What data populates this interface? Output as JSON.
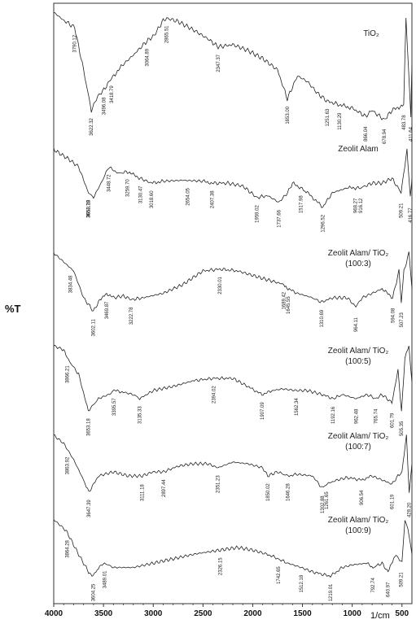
{
  "chart_data": {
    "type": "line",
    "ylabel": "%T",
    "xlabel": "1/cm",
    "xlim": [
      4000,
      400
    ],
    "x_reversed": true,
    "x_ticks": [
      4000,
      3500,
      3000,
      2500,
      2000,
      1500,
      1000,
      500
    ],
    "grid": "none",
    "series": [
      {
        "name": "TiO2",
        "name_lines": [
          "TiO₂"
        ],
        "trace": [
          [
            4000,
            0.05
          ],
          [
            3900,
            0.12
          ],
          [
            3790,
            0.18
          ],
          [
            3700,
            0.55
          ],
          [
            3622,
            0.9
          ],
          [
            3560,
            0.78
          ],
          [
            3496,
            0.72
          ],
          [
            3418,
            0.62
          ],
          [
            3300,
            0.5
          ],
          [
            3200,
            0.42
          ],
          [
            3064,
            0.3
          ],
          [
            2990,
            0.25
          ],
          [
            2900,
            0.12
          ],
          [
            2865,
            0.1
          ],
          [
            2750,
            0.13
          ],
          [
            2600,
            0.2
          ],
          [
            2450,
            0.28
          ],
          [
            2347,
            0.35
          ],
          [
            2200,
            0.33
          ],
          [
            2050,
            0.38
          ],
          [
            1900,
            0.45
          ],
          [
            1750,
            0.55
          ],
          [
            1653,
            0.8
          ],
          [
            1550,
            0.6
          ],
          [
            1450,
            0.65
          ],
          [
            1350,
            0.75
          ],
          [
            1251,
            0.82
          ],
          [
            1130,
            0.85
          ],
          [
            1000,
            0.88
          ],
          [
            866,
            0.95
          ],
          [
            800,
            0.9
          ],
          [
            678,
            0.98
          ],
          [
            600,
            0.9
          ],
          [
            483,
            0.85
          ],
          [
            460,
            0.1
          ],
          [
            411,
            0.95
          ],
          [
            400,
            0.5
          ]
        ],
        "peaks": [
          {
            "x": 3790,
            "label": "3790.12"
          },
          {
            "x": 3622,
            "label": "3622.32"
          },
          {
            "x": 3496,
            "label": "3496.08"
          },
          {
            "x": 3418,
            "label": "3418.79"
          },
          {
            "x": 3064,
            "label": "3064.89"
          },
          {
            "x": 2865,
            "label": "2865.51"
          },
          {
            "x": 2347,
            "label": "2347.37"
          },
          {
            "x": 1653,
            "label": "1653.00"
          },
          {
            "x": 1251,
            "label": "1251.63"
          },
          {
            "x": 1130,
            "label": "1130.29"
          },
          {
            "x": 866,
            "label": "866.04"
          },
          {
            "x": 678,
            "label": "678.94"
          },
          {
            "x": 483,
            "label": "483.78"
          },
          {
            "x": 411,
            "label": "411.64"
          }
        ]
      },
      {
        "name": "Zeolit Alam",
        "name_lines": [
          "Zeolit Alam"
        ],
        "trace": [
          [
            4000,
            0.1
          ],
          [
            3850,
            0.2
          ],
          [
            3750,
            0.28
          ],
          [
            3651,
            0.55
          ],
          [
            3600,
            0.6
          ],
          [
            3500,
            0.4
          ],
          [
            3448,
            0.28
          ],
          [
            3350,
            0.35
          ],
          [
            3259,
            0.33
          ],
          [
            3130,
            0.4
          ],
          [
            3018,
            0.45
          ],
          [
            2900,
            0.43
          ],
          [
            2700,
            0.42
          ],
          [
            2500,
            0.43
          ],
          [
            2407,
            0.45
          ],
          [
            2250,
            0.45
          ],
          [
            2100,
            0.48
          ],
          [
            1959,
            0.6
          ],
          [
            1850,
            0.58
          ],
          [
            1737,
            0.65
          ],
          [
            1650,
            0.55
          ],
          [
            1600,
            0.45
          ],
          [
            1517,
            0.5
          ],
          [
            1450,
            0.55
          ],
          [
            1296,
            0.7
          ],
          [
            1200,
            0.55
          ],
          [
            1050,
            0.5
          ],
          [
            968,
            0.5
          ],
          [
            916,
            0.5
          ],
          [
            800,
            0.45
          ],
          [
            700,
            0.45
          ],
          [
            600,
            0.4
          ],
          [
            509,
            0.55
          ],
          [
            450,
            0.1
          ],
          [
            416,
            0.6
          ],
          [
            400,
            0.4
          ]
        ],
        "peaks": [
          {
            "x": 3651,
            "label": "3651.70"
          },
          {
            "x": 3653,
            "label": "3653.18"
          },
          {
            "x": 3448,
            "label": "3448.72"
          },
          {
            "x": 3259,
            "label": "3259.70"
          },
          {
            "x": 3130,
            "label": "3130.47"
          },
          {
            "x": 3018,
            "label": "3018.60"
          },
          {
            "x": 2654,
            "label": "2654.05"
          },
          {
            "x": 2407,
            "label": "2407.38"
          },
          {
            "x": 1959,
            "label": "1959.02"
          },
          {
            "x": 1737,
            "label": "1737.66"
          },
          {
            "x": 1517,
            "label": "1517.98"
          },
          {
            "x": 1296,
            "label": "1296.52"
          },
          {
            "x": 968,
            "label": "968.27"
          },
          {
            "x": 916,
            "label": "916.12"
          },
          {
            "x": 509,
            "label": "509.21"
          },
          {
            "x": 416,
            "label": "416.77"
          }
        ]
      },
      {
        "name": "Zeolit Alam/ TiO2 (100:3)",
        "name_lines": [
          "Zeolit Alam/ TiO₂",
          "(100:3)"
        ],
        "trace": [
          [
            4000,
            0.1
          ],
          [
            3900,
            0.2
          ],
          [
            3800,
            0.3
          ],
          [
            3700,
            0.6
          ],
          [
            3602,
            0.75
          ],
          [
            3550,
            0.65
          ],
          [
            3480,
            0.55
          ],
          [
            3400,
            0.6
          ],
          [
            3300,
            0.58
          ],
          [
            3222,
            0.62
          ],
          [
            3100,
            0.6
          ],
          [
            2900,
            0.55
          ],
          [
            2700,
            0.45
          ],
          [
            2500,
            0.3
          ],
          [
            2330,
            0.28
          ],
          [
            2150,
            0.3
          ],
          [
            2000,
            0.35
          ],
          [
            1850,
            0.4
          ],
          [
            1689,
            0.45
          ],
          [
            1645,
            0.5
          ],
          [
            1550,
            0.55
          ],
          [
            1400,
            0.6
          ],
          [
            1310,
            0.65
          ],
          [
            1200,
            0.6
          ],
          [
            1050,
            0.6
          ],
          [
            964,
            0.7
          ],
          [
            900,
            0.6
          ],
          [
            800,
            0.55
          ],
          [
            700,
            0.5
          ],
          [
            594,
            0.6
          ],
          [
            530,
            0.3
          ],
          [
            507,
            0.65
          ],
          [
            480,
            0.3
          ],
          [
            430,
            0.1
          ],
          [
            400,
            0.5
          ]
        ],
        "peaks": [
          {
            "x": 3834,
            "label": "3834.48"
          },
          {
            "x": 3602,
            "label": "3602.11"
          },
          {
            "x": 3469,
            "label": "3469.87"
          },
          {
            "x": 3222,
            "label": "3222.78"
          },
          {
            "x": 2330,
            "label": "2330.01"
          },
          {
            "x": 1689,
            "label": "1689.42"
          },
          {
            "x": 1645,
            "label": "1645.55"
          },
          {
            "x": 1310,
            "label": "1310.69"
          },
          {
            "x": 964,
            "label": "964.11"
          },
          {
            "x": 594,
            "label": "594.08"
          },
          {
            "x": 507,
            "label": "507.23"
          }
        ]
      },
      {
        "name": "Zeolit Alam/ TiO2 (100:5)",
        "name_lines": [
          "Zeolit Alam/ TiO₂",
          "(100:5)"
        ],
        "trace": [
          [
            4000,
            0.05
          ],
          [
            3900,
            0.1
          ],
          [
            3866,
            0.2
          ],
          [
            3750,
            0.4
          ],
          [
            3653,
            0.85
          ],
          [
            3550,
            0.7
          ],
          [
            3450,
            0.65
          ],
          [
            3395,
            0.6
          ],
          [
            3300,
            0.62
          ],
          [
            3200,
            0.65
          ],
          [
            3135,
            0.7
          ],
          [
            3000,
            0.6
          ],
          [
            2800,
            0.55
          ],
          [
            2600,
            0.48
          ],
          [
            2394,
            0.45
          ],
          [
            2200,
            0.45
          ],
          [
            2050,
            0.55
          ],
          [
            1907,
            0.65
          ],
          [
            1800,
            0.6
          ],
          [
            1700,
            0.58
          ],
          [
            1562,
            0.6
          ],
          [
            1450,
            0.6
          ],
          [
            1300,
            0.65
          ],
          [
            1192,
            0.7
          ],
          [
            1100,
            0.65
          ],
          [
            962,
            0.7
          ],
          [
            850,
            0.65
          ],
          [
            765,
            0.7
          ],
          [
            700,
            0.65
          ],
          [
            601,
            0.75
          ],
          [
            540,
            0.35
          ],
          [
            505,
            0.85
          ],
          [
            470,
            0.2
          ],
          [
            430,
            0.05
          ],
          [
            400,
            0.5
          ]
        ],
        "peaks": [
          {
            "x": 3866,
            "label": "3866.21"
          },
          {
            "x": 3653,
            "label": "3653.18"
          },
          {
            "x": 3395,
            "label": "3395.57"
          },
          {
            "x": 3135,
            "label": "3135.33"
          },
          {
            "x": 2394,
            "label": "2394.02"
          },
          {
            "x": 1907,
            "label": "1907.09"
          },
          {
            "x": 1562,
            "label": "1562.34"
          },
          {
            "x": 1192,
            "label": "1192.16"
          },
          {
            "x": 962,
            "label": "962.48"
          },
          {
            "x": 765,
            "label": "765.74"
          },
          {
            "x": 601,
            "label": "601.79"
          },
          {
            "x": 505,
            "label": "505.35"
          }
        ]
      },
      {
        "name": "Zeolit Alam/ TiO2 (100:7)",
        "name_lines": [
          "Zeolit Alam/ TiO₂",
          "(100:7)"
        ],
        "trace": [
          [
            4000,
            0.1
          ],
          [
            3900,
            0.2
          ],
          [
            3800,
            0.4
          ],
          [
            3700,
            0.65
          ],
          [
            3647,
            0.8
          ],
          [
            3550,
            0.6
          ],
          [
            3400,
            0.55
          ],
          [
            3250,
            0.6
          ],
          [
            3111,
            0.6
          ],
          [
            3000,
            0.55
          ],
          [
            2897,
            0.55
          ],
          [
            2750,
            0.48
          ],
          [
            2600,
            0.45
          ],
          [
            2450,
            0.45
          ],
          [
            2351,
            0.5
          ],
          [
            2200,
            0.43
          ],
          [
            2050,
            0.45
          ],
          [
            1900,
            0.5
          ],
          [
            1850,
            0.6
          ],
          [
            1750,
            0.55
          ],
          [
            1646,
            0.6
          ],
          [
            1550,
            0.58
          ],
          [
            1400,
            0.6
          ],
          [
            1302,
            0.75
          ],
          [
            1261,
            0.7
          ],
          [
            1150,
            0.65
          ],
          [
            1050,
            0.62
          ],
          [
            906,
            0.65
          ],
          [
            800,
            0.6
          ],
          [
            700,
            0.65
          ],
          [
            601,
            0.7
          ],
          [
            540,
            0.6
          ],
          [
            500,
            0.55
          ],
          [
            455,
            0.1
          ],
          [
            428,
            0.8
          ],
          [
            400,
            0.45
          ]
        ],
        "peaks": [
          {
            "x": 3863,
            "label": "3863.92"
          },
          {
            "x": 3647,
            "label": "3647.39"
          },
          {
            "x": 3111,
            "label": "3111.18"
          },
          {
            "x": 2897,
            "label": "2897.44"
          },
          {
            "x": 2351,
            "label": "2351.23"
          },
          {
            "x": 1850,
            "label": "1850.02"
          },
          {
            "x": 1646,
            "label": "1646.28"
          },
          {
            "x": 1302,
            "label": "1302.88"
          },
          {
            "x": 1261,
            "label": "1261.65"
          },
          {
            "x": 906,
            "label": "906.54"
          },
          {
            "x": 601,
            "label": "601.19"
          },
          {
            "x": 428,
            "label": "428.20"
          }
        ]
      },
      {
        "name": "Zeolit Alam/ TiO2 (100:9)",
        "name_lines": [
          "Zeolit Alam/ TiO₂",
          "(100:9)"
        ],
        "trace": [
          [
            4000,
            0.1
          ],
          [
            3900,
            0.2
          ],
          [
            3864,
            0.25
          ],
          [
            3750,
            0.5
          ],
          [
            3650,
            0.7
          ],
          [
            3604,
            0.75
          ],
          [
            3550,
            0.65
          ],
          [
            3489,
            0.6
          ],
          [
            3400,
            0.65
          ],
          [
            3200,
            0.65
          ],
          [
            3000,
            0.6
          ],
          [
            2800,
            0.55
          ],
          [
            2600,
            0.5
          ],
          [
            2500,
            0.48
          ],
          [
            2326,
            0.45
          ],
          [
            2150,
            0.42
          ],
          [
            2000,
            0.45
          ],
          [
            1850,
            0.5
          ],
          [
            1742,
            0.55
          ],
          [
            1650,
            0.6
          ],
          [
            1512,
            0.65
          ],
          [
            1400,
            0.7
          ],
          [
            1219,
            0.75
          ],
          [
            1100,
            0.65
          ],
          [
            1000,
            0.62
          ],
          [
            850,
            0.6
          ],
          [
            792,
            0.65
          ],
          [
            700,
            0.6
          ],
          [
            640,
            0.7
          ],
          [
            560,
            0.5
          ],
          [
            500,
            0.6
          ],
          [
            470,
            0.1
          ],
          [
            440,
            0.2
          ],
          [
            400,
            0.5
          ]
        ],
        "peaks": [
          {
            "x": 3864,
            "label": "3864.28"
          },
          {
            "x": 3604,
            "label": "3604.25"
          },
          {
            "x": 3489,
            "label": "3489.01"
          },
          {
            "x": 2326,
            "label": "2326.15"
          },
          {
            "x": 1742,
            "label": "1742.65"
          },
          {
            "x": 1512,
            "label": "1512.18"
          },
          {
            "x": 1219,
            "label": "1219.01"
          },
          {
            "x": 792,
            "label": "792.74"
          },
          {
            "x": 640,
            "label": "640.97"
          },
          {
            "x": 509,
            "label": "509.21"
          }
        ]
      }
    ]
  }
}
